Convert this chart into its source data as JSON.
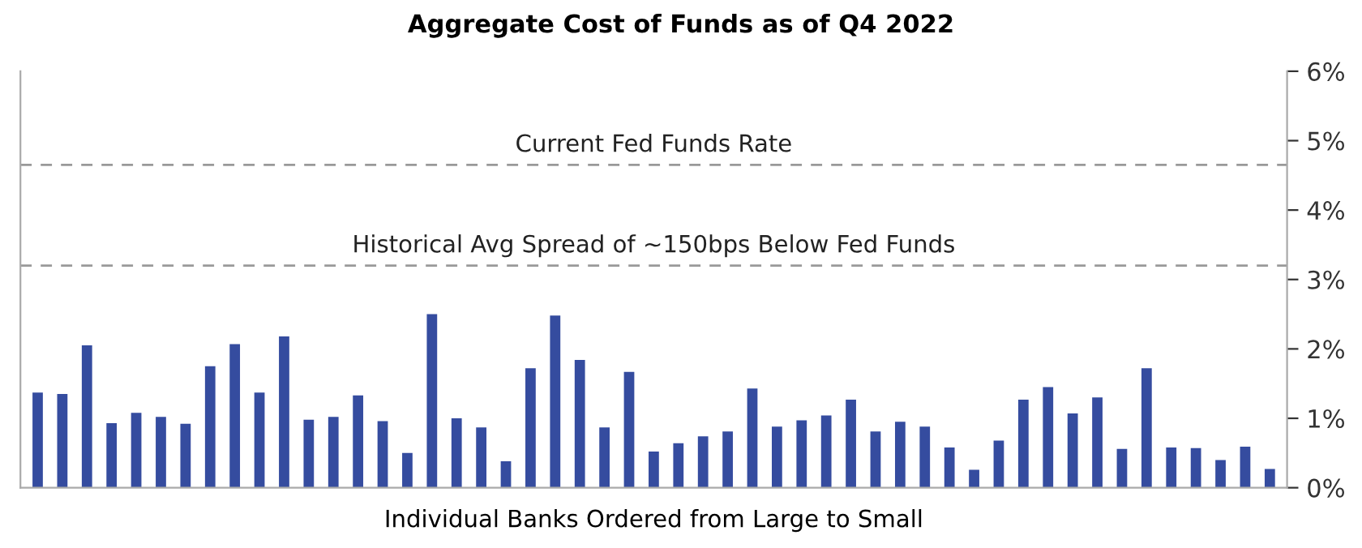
{
  "chart_data": {
    "type": "bar",
    "title": "Aggregate Cost of Funds as of Q4 2022",
    "xlabel": "Individual Banks Ordered from Large to Small",
    "categories": [
      null,
      null,
      null,
      null,
      null,
      null,
      null,
      null,
      null,
      null,
      null,
      null,
      null,
      null,
      null,
      null,
      null,
      null,
      null,
      null,
      null,
      null,
      null,
      null,
      null,
      null,
      null,
      null,
      null,
      null,
      null,
      null,
      null,
      null,
      null,
      null,
      null,
      null,
      null,
      null,
      null,
      null,
      null,
      null,
      null,
      null,
      null,
      null,
      null,
      null,
      null
    ],
    "values": [
      1.37,
      1.35,
      2.05,
      0.93,
      1.08,
      1.02,
      0.92,
      1.75,
      2.07,
      1.37,
      2.18,
      0.98,
      1.02,
      1.33,
      0.96,
      0.5,
      2.5,
      1.0,
      0.87,
      0.38,
      1.72,
      2.48,
      1.84,
      0.87,
      1.67,
      0.52,
      0.64,
      0.74,
      0.81,
      1.43,
      0.88,
      0.97,
      1.04,
      1.27,
      0.81,
      0.95,
      0.88,
      0.58,
      0.26,
      0.68,
      1.27,
      1.45,
      1.07,
      1.3,
      0.56,
      1.72,
      0.58,
      0.57,
      0.4,
      0.59,
      0.27
    ],
    "color": "#354c9f",
    "ylim": [
      0,
      6
    ],
    "yticks": [
      {
        "value": 0,
        "label": "0%"
      },
      {
        "value": 1,
        "label": "1%"
      },
      {
        "value": 2,
        "label": "2%"
      },
      {
        "value": 3,
        "label": "3%"
      },
      {
        "value": 4,
        "label": "4%"
      },
      {
        "value": 5,
        "label": "5%"
      },
      {
        "value": 6,
        "label": "6%"
      }
    ],
    "ref_lines": [
      {
        "axis": "y",
        "value": 4.65,
        "label": "Current Fed Funds Rate",
        "color": "#999999",
        "line_style": "dashed"
      },
      {
        "axis": "y",
        "value": 3.2,
        "label": "Historical Avg Spread of ~150bps Below Fed Funds",
        "color": "#999999",
        "line_style": "dashed"
      }
    ],
    "grid": false,
    "legend": false
  }
}
